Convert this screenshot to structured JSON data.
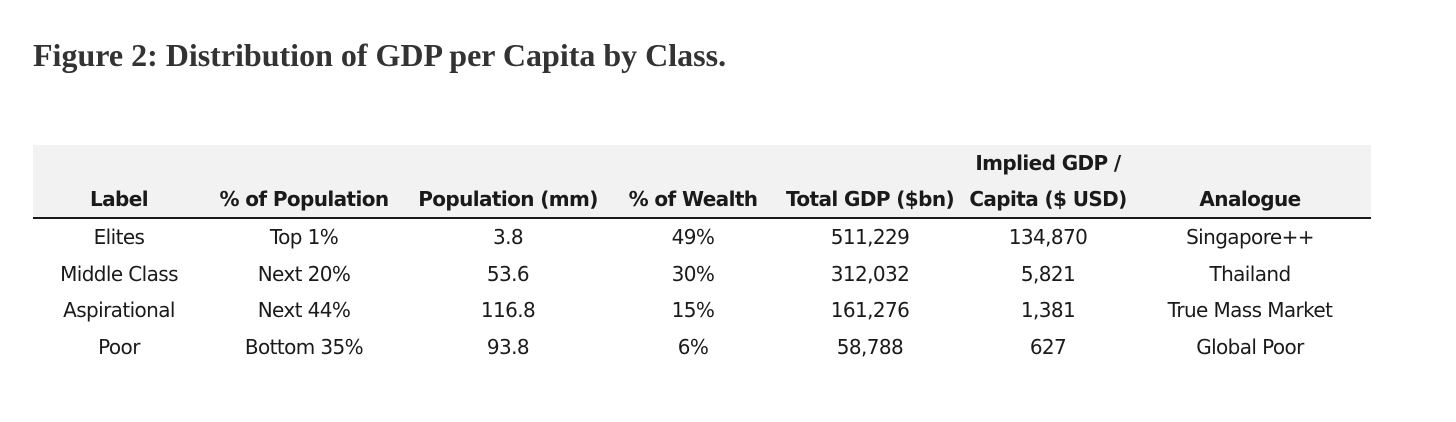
{
  "figure": {
    "title": "Figure 2: Distribution of GDP per Capita by Class."
  },
  "table": {
    "columns": [
      {
        "line1": "",
        "line2": "Label"
      },
      {
        "line1": "",
        "line2": "% of Population"
      },
      {
        "line1": "",
        "line2": "Population (mm)"
      },
      {
        "line1": "",
        "line2": "% of Wealth"
      },
      {
        "line1": "",
        "line2": "Total GDP ($bn)"
      },
      {
        "line1": "Implied GDP /",
        "line2": "Capita ($ USD)"
      },
      {
        "line1": "",
        "line2": "Analogue"
      }
    ],
    "rows": [
      [
        "Elites",
        "Top 1%",
        "3.8",
        "49%",
        "511,229",
        "134,870",
        "Singapore++"
      ],
      [
        "Middle Class",
        "Next 20%",
        "53.6",
        "30%",
        "312,032",
        "5,821",
        "Thailand"
      ],
      [
        "Aspirational",
        "Next 44%",
        "116.8",
        "15%",
        "161,276",
        "1,381",
        "True Mass Market"
      ],
      [
        "Poor",
        "Bottom 35%",
        "93.8",
        "6%",
        "58,788",
        "627",
        "Global Poor"
      ]
    ]
  },
  "colors": {
    "header_background": "#f2f2f2",
    "rule": "#1a1a1a",
    "title_text": "#333333"
  }
}
